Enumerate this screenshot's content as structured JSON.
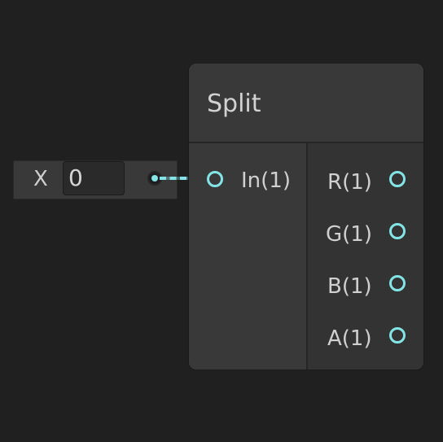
{
  "input_field": {
    "axis_label": "X",
    "value": "0"
  },
  "node": {
    "title": "Split",
    "inputs": [
      {
        "label": "In(1)"
      }
    ],
    "outputs": [
      {
        "label": "R(1)"
      },
      {
        "label": "G(1)"
      },
      {
        "label": "B(1)"
      },
      {
        "label": "A(1)"
      }
    ]
  },
  "colors": {
    "background": "#202020",
    "node_body": "#393939",
    "port_accent": "#84e4e7"
  }
}
